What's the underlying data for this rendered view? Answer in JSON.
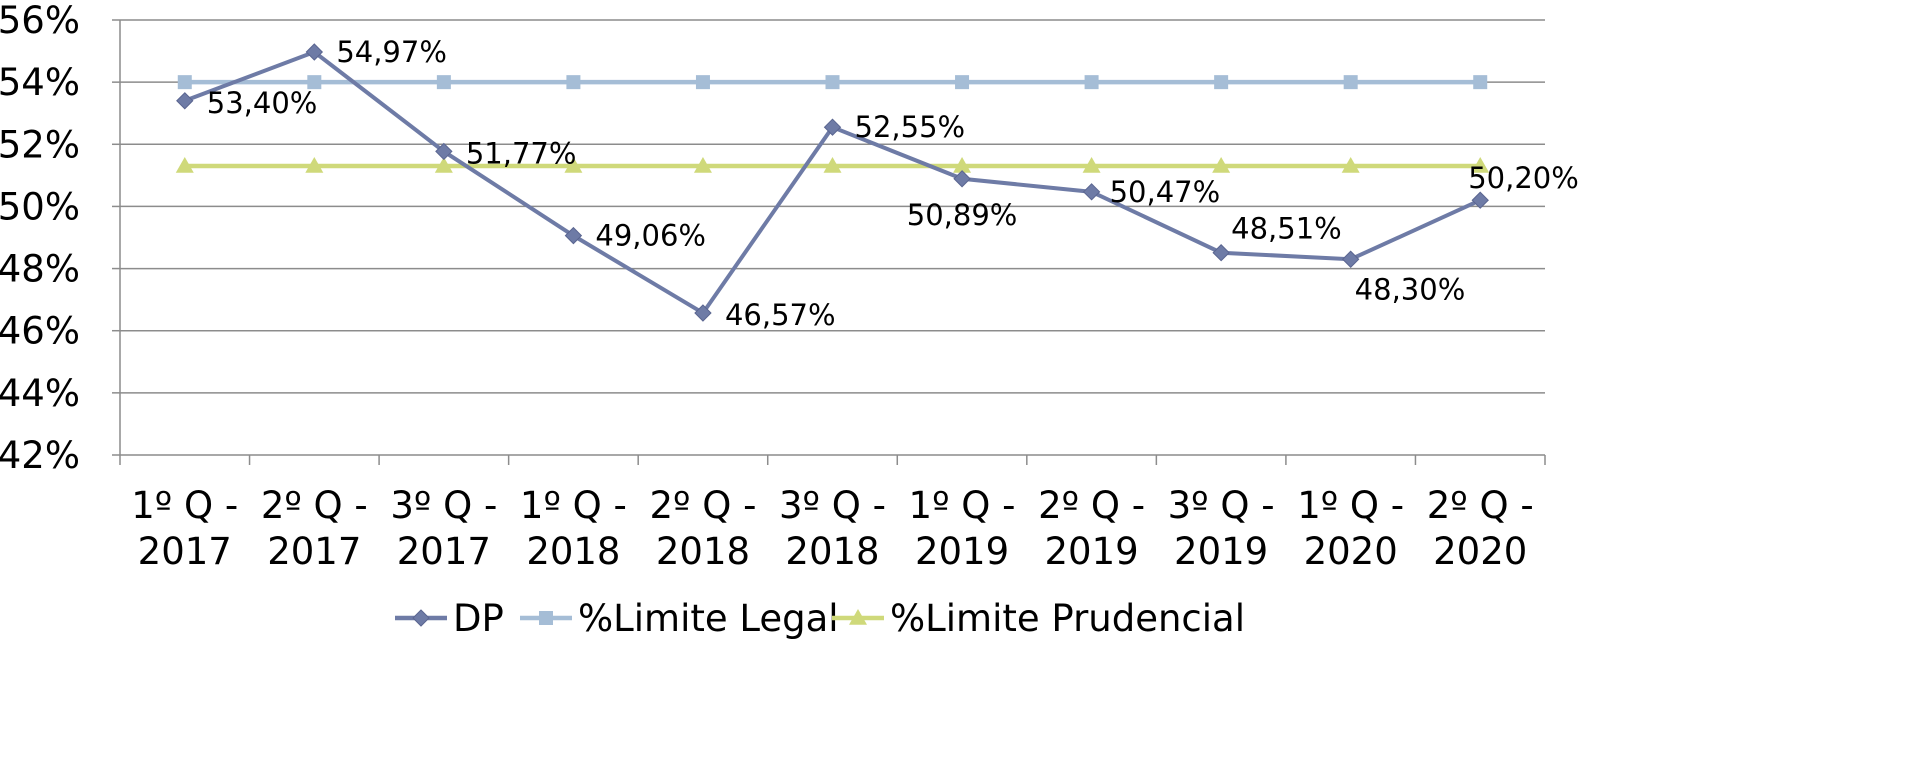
{
  "chart_data": {
    "type": "line",
    "title": "",
    "xlabel": "",
    "ylabel": "",
    "categories": [
      [
        "1º Q -",
        "2017"
      ],
      [
        "2º Q -",
        "2017"
      ],
      [
        "3º Q -",
        "2017"
      ],
      [
        "1º Q -",
        "2018"
      ],
      [
        "2º Q -",
        "2018"
      ],
      [
        "3º Q -",
        "2018"
      ],
      [
        "1º Q -",
        "2019"
      ],
      [
        "2º Q -",
        "2019"
      ],
      [
        "3º Q -",
        "2019"
      ],
      [
        "1º Q -",
        "2020"
      ],
      [
        "2º Q -",
        "2020"
      ]
    ],
    "ylim": [
      42,
      56
    ],
    "yticks": [
      42,
      44,
      46,
      48,
      50,
      52,
      54,
      56
    ],
    "ytick_labels": [
      "42%",
      "44%",
      "46%",
      "48%",
      "50%",
      "52%",
      "54%",
      "56%"
    ],
    "grid": true,
    "legend_position": "bottom",
    "series": [
      {
        "name": "DP",
        "color": "#6E7BA6",
        "marker": "diamond",
        "values": [
          53.4,
          54.97,
          51.77,
          49.06,
          46.57,
          52.55,
          50.89,
          50.47,
          48.51,
          48.3,
          50.2
        ],
        "data_labels": [
          "53,40%",
          "54,97%",
          "51,77%",
          "49,06%",
          "46,57%",
          "52,55%",
          "50,89%",
          "50,47%",
          "48,51%",
          "48,30%",
          "50,20%"
        ]
      },
      {
        "name": "%Limite Legal",
        "color": "#A5BDD6",
        "marker": "square",
        "values": [
          54,
          54,
          54,
          54,
          54,
          54,
          54,
          54,
          54,
          54,
          54
        ]
      },
      {
        "name": "%Limite Prudencial",
        "color": "#CFD97A",
        "marker": "triangle",
        "values": [
          51.3,
          51.3,
          51.3,
          51.3,
          51.3,
          51.3,
          51.3,
          51.3,
          51.3,
          51.3,
          51.3
        ]
      }
    ]
  }
}
